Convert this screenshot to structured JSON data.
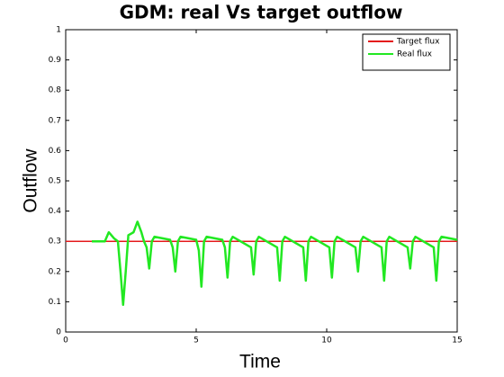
{
  "chart_data": {
    "type": "line",
    "title": "GDM: real Vs target outflow",
    "x_label": "Time",
    "y_label": "Outflow",
    "xlim": [
      0,
      15
    ],
    "xticks": [
      0,
      5,
      10,
      15
    ],
    "ylim": [
      0,
      1
    ],
    "yticks": [
      0,
      0.1,
      0.2,
      0.3,
      0.4,
      0.5,
      0.6,
      0.7,
      0.8,
      0.9,
      1
    ],
    "grid": false,
    "legend": "northeast",
    "series": [
      {
        "name": "Target flux",
        "color": "#e41a1c",
        "x": [
          0,
          15
        ],
        "values": [
          0.3,
          0.3
        ]
      },
      {
        "name": "Real flux",
        "color": "#22e822",
        "x": [
          1.0,
          1.5,
          1.65,
          1.85,
          2.0,
          2.1,
          2.2,
          2.3,
          2.4,
          2.6,
          2.75,
          2.9,
          3.0,
          3.1,
          3.2,
          3.3,
          3.4,
          4.0,
          4.1,
          4.2,
          4.3,
          4.4,
          5.0,
          5.1,
          5.2,
          5.3,
          5.4,
          6.0,
          6.1,
          6.2,
          6.3,
          6.4,
          7.1,
          7.2,
          7.3,
          7.4,
          8.1,
          8.2,
          8.3,
          8.4,
          9.1,
          9.2,
          9.3,
          9.4,
          10.1,
          10.2,
          10.3,
          10.4,
          11.1,
          11.2,
          11.3,
          11.4,
          12.1,
          12.2,
          12.3,
          12.4,
          13.1,
          13.2,
          13.3,
          13.4,
          14.1,
          14.2,
          14.3,
          14.4,
          15.0
        ],
        "values": [
          0.3,
          0.3,
          0.33,
          0.31,
          0.3,
          0.2,
          0.09,
          0.2,
          0.32,
          0.33,
          0.365,
          0.33,
          0.3,
          0.28,
          0.21,
          0.3,
          0.315,
          0.305,
          0.28,
          0.2,
          0.3,
          0.315,
          0.305,
          0.27,
          0.15,
          0.3,
          0.315,
          0.305,
          0.28,
          0.18,
          0.3,
          0.315,
          0.28,
          0.19,
          0.3,
          0.315,
          0.28,
          0.17,
          0.3,
          0.315,
          0.28,
          0.17,
          0.3,
          0.315,
          0.28,
          0.18,
          0.3,
          0.315,
          0.28,
          0.2,
          0.3,
          0.315,
          0.28,
          0.17,
          0.3,
          0.315,
          0.28,
          0.21,
          0.3,
          0.315,
          0.28,
          0.17,
          0.3,
          0.315,
          0.305
        ]
      }
    ]
  }
}
